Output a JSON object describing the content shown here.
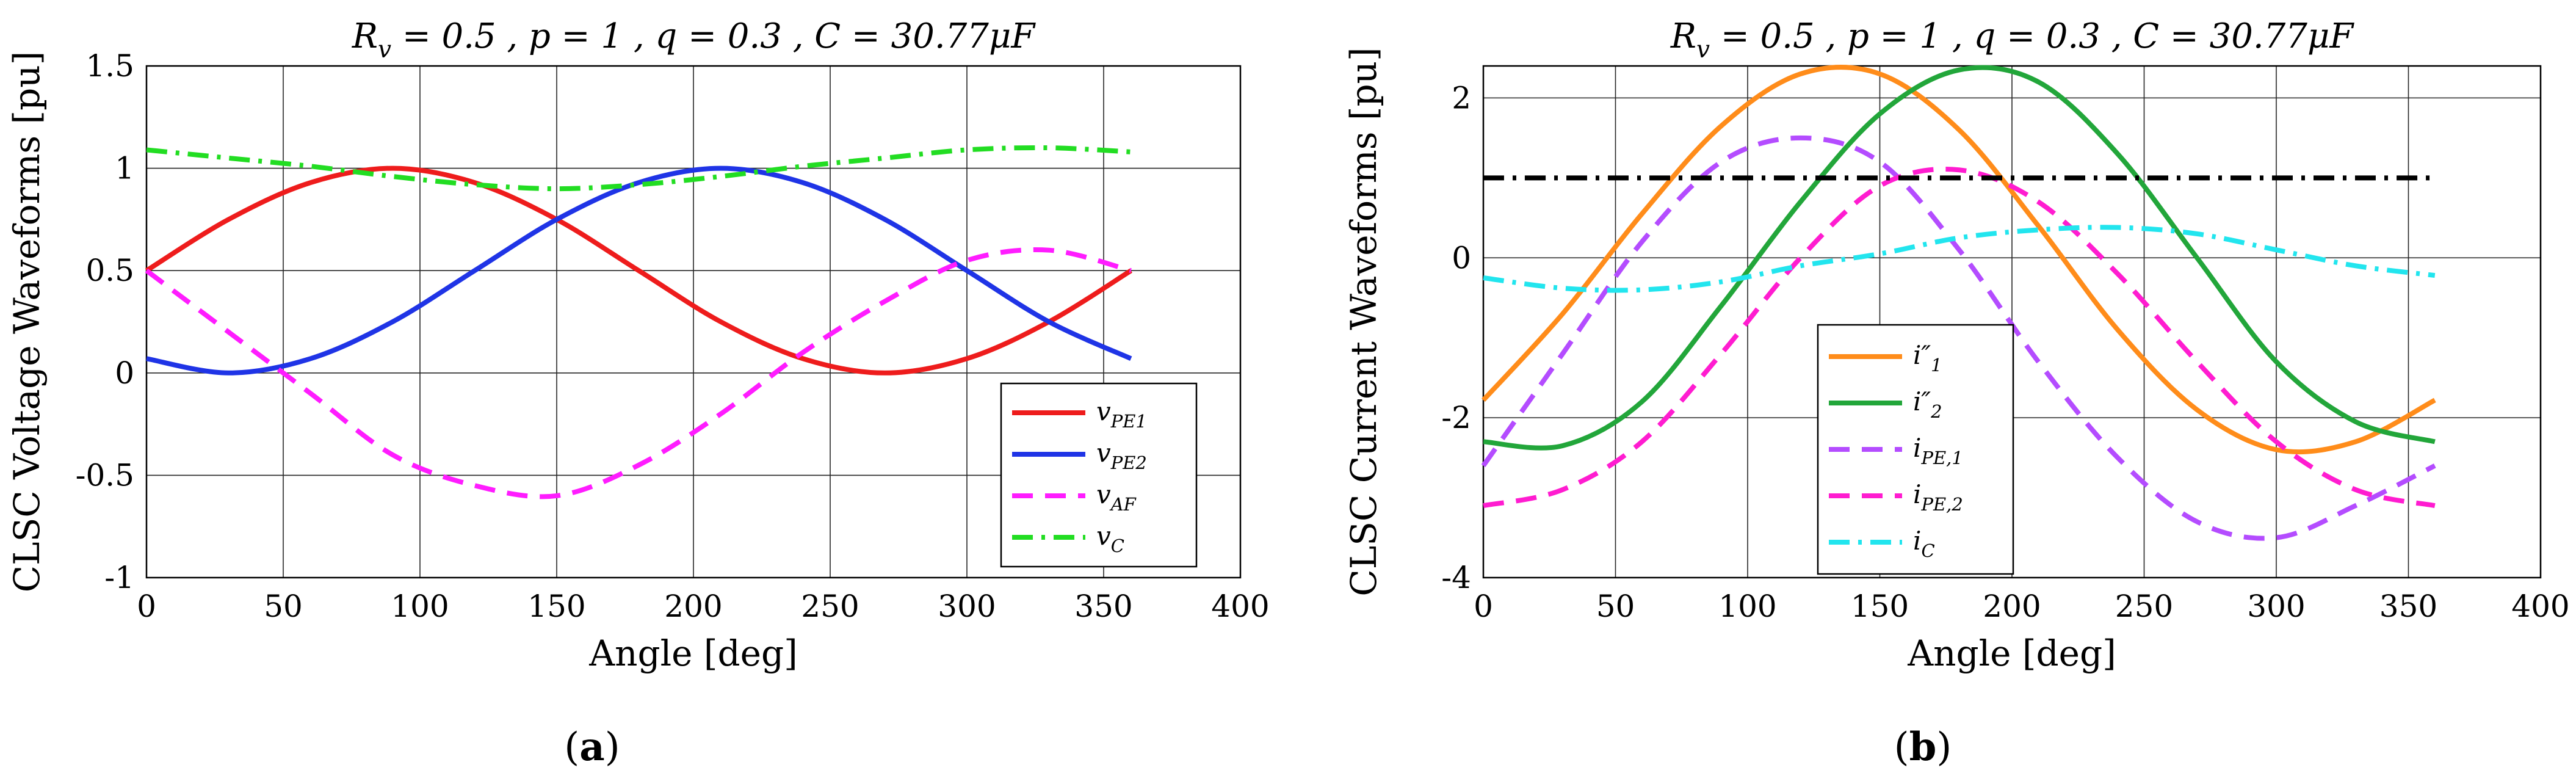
{
  "figure": {
    "panels": [
      {
        "label_open": "(",
        "label_letter": "a",
        "label_close": ")"
      },
      {
        "label_open": "(",
        "label_letter": "b",
        "label_close": ")"
      }
    ]
  },
  "chart_data": [
    {
      "type": "line",
      "title": "R_v = 0.5 , p = 1 , q = 0.3 , C = 30.77μF",
      "xlabel": "Angle [deg]",
      "ylabel": "CLSC Voltage Waveforms [pu]",
      "xlim": [
        0,
        400
      ],
      "ylim": [
        -1,
        1.5
      ],
      "xticks": [
        0,
        50,
        100,
        150,
        200,
        250,
        300,
        350,
        400
      ],
      "yticks": [
        -1,
        -0.5,
        0,
        0.5,
        1,
        1.5
      ],
      "ytick_labels": [
        "-1",
        "-0.5",
        "0",
        "0.5",
        "1",
        "1.5"
      ],
      "grid": true,
      "legend_position": "bottom-right",
      "x": [
        0,
        30,
        60,
        90,
        120,
        150,
        180,
        210,
        240,
        270,
        300,
        330,
        360
      ],
      "series": [
        {
          "name": "v_PE1",
          "color": "#ee1c1c",
          "style": "solid",
          "values": [
            0.5,
            0.75,
            0.93,
            1.0,
            0.93,
            0.75,
            0.5,
            0.25,
            0.07,
            0.0,
            0.07,
            0.25,
            0.5
          ]
        },
        {
          "name": "v_PE2",
          "color": "#1f34e6",
          "style": "solid",
          "values": [
            0.07,
            0.0,
            0.07,
            0.25,
            0.5,
            0.75,
            0.93,
            1.0,
            0.93,
            0.75,
            0.5,
            0.25,
            0.07
          ]
        },
        {
          "name": "v_AF",
          "color": "#ff1cff",
          "style": "dashed",
          "values": [
            0.5,
            0.2,
            -0.1,
            -0.4,
            -0.55,
            -0.6,
            -0.45,
            -0.2,
            0.1,
            0.35,
            0.55,
            0.6,
            0.5
          ]
        },
        {
          "name": "v_C",
          "color": "#22dd22",
          "style": "dashdot",
          "values": [
            1.09,
            1.05,
            1.01,
            0.96,
            0.92,
            0.9,
            0.92,
            0.96,
            1.01,
            1.05,
            1.09,
            1.1,
            1.08
          ]
        }
      ]
    },
    {
      "type": "line",
      "title": "R_v = 0.5 , p = 1 , q = 0.3 , C = 30.77μF",
      "xlabel": "Angle [deg]",
      "ylabel": "CLSC Current Waveforms [pu]",
      "xlim": [
        0,
        400
      ],
      "ylim": [
        -4,
        2.4
      ],
      "xticks": [
        0,
        50,
        100,
        150,
        200,
        250,
        300,
        350,
        400
      ],
      "yticks": [
        -4,
        -2,
        0,
        2
      ],
      "ytick_labels": [
        "-4",
        "-2",
        "0",
        "2"
      ],
      "grid": true,
      "legend_position": "bottom-center",
      "x": [
        0,
        30,
        60,
        90,
        120,
        150,
        180,
        210,
        240,
        270,
        300,
        330,
        360
      ],
      "series": [
        {
          "name": "i″_1",
          "color": "#ff8c1a",
          "style": "solid",
          "values": [
            -1.78,
            -0.7,
            0.55,
            1.65,
            2.3,
            2.3,
            1.6,
            0.4,
            -0.9,
            -1.9,
            -2.4,
            -2.3,
            -1.78
          ]
        },
        {
          "name": "i″_2",
          "color": "#22a63a",
          "style": "solid",
          "values": [
            -2.3,
            -2.35,
            -1.8,
            -0.6,
            0.7,
            1.8,
            2.35,
            2.2,
            1.3,
            0.0,
            -1.3,
            -2.05,
            -2.3
          ]
        },
        {
          "name": "i_PE,1",
          "color": "#b44cff",
          "style": "dashed",
          "values": [
            -2.6,
            -1.2,
            0.2,
            1.2,
            1.5,
            1.2,
            0.1,
            -1.3,
            -2.5,
            -3.3,
            -3.5,
            -3.1,
            -2.6
          ]
        },
        {
          "name": "i_PE,2",
          "color": "#ff1cd0",
          "style": "dashed",
          "values": [
            -3.1,
            -2.9,
            -2.3,
            -1.2,
            0.0,
            0.9,
            1.1,
            0.7,
            -0.2,
            -1.3,
            -2.3,
            -2.9,
            -3.1
          ]
        },
        {
          "name": "i_C",
          "color": "#22e5ee",
          "style": "dashdot",
          "values": [
            -0.25,
            -0.38,
            -0.4,
            -0.3,
            -0.1,
            0.05,
            0.25,
            0.35,
            0.38,
            0.3,
            0.1,
            -0.1,
            -0.22
          ]
        },
        {
          "name": "",
          "color": "#000000",
          "style": "dashdot",
          "in_legend": false,
          "values": [
            1.0,
            1.0,
            1.0,
            1.0,
            1.0,
            1.0,
            1.0,
            1.0,
            1.0,
            1.0,
            1.0,
            1.0,
            1.0
          ]
        }
      ]
    }
  ]
}
